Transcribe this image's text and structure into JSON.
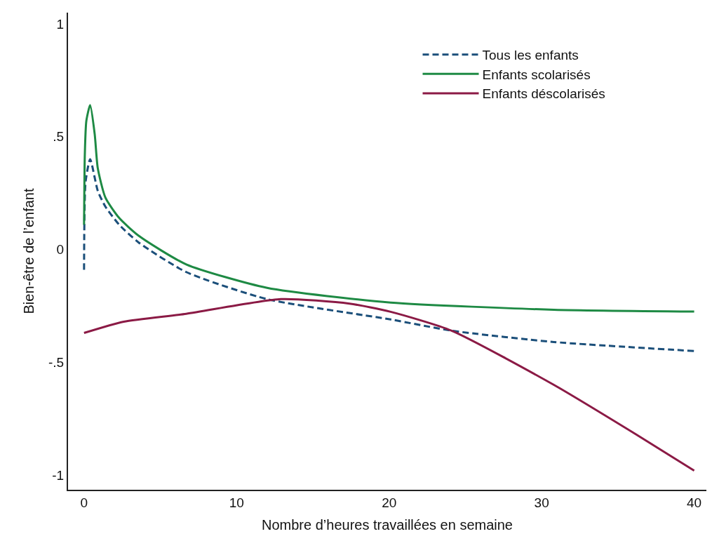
{
  "chart_data": {
    "type": "line",
    "xlabel": "Nombre d’heures travaillées en semaine",
    "ylabel": "Bien-être de l’enfant",
    "xlim": [
      -1.05,
      40.8
    ],
    "ylim": [
      -1.065,
      1.05
    ],
    "xticks": [
      0,
      10,
      20,
      30,
      40
    ],
    "yticks": [
      {
        "value": 1,
        "label": "1"
      },
      {
        "value": 0.5,
        "label": ".5"
      },
      {
        "value": 0,
        "label": "0"
      },
      {
        "value": -0.5,
        "label": "-.5"
      },
      {
        "value": -1,
        "label": "-1"
      }
    ],
    "legend": "top right",
    "marker": "none",
    "series": [
      {
        "name": "Tous les enfants",
        "color": "#1b4f7a",
        "line_style": "dashed",
        "x": [
          0,
          0.1,
          0.4,
          0.9,
          1.4,
          2.3,
          3.6,
          6.7,
          12.0,
          20.1,
          24.1,
          30.8,
          40
        ],
        "values": [
          -0.09,
          0.3,
          0.4,
          0.26,
          0.19,
          0.11,
          0.03,
          -0.1,
          -0.22,
          -0.31,
          -0.36,
          -0.41,
          -0.45
        ]
      },
      {
        "name": "Enfants scolarisés",
        "color": "#1e8a44",
        "line_style": "solid",
        "x": [
          0,
          0.05,
          0.15,
          0.4,
          0.7,
          0.9,
          1.4,
          2.3,
          3.6,
          6.7,
          12.0,
          20.1,
          30.8,
          40
        ],
        "values": [
          0.11,
          0.42,
          0.57,
          0.64,
          0.51,
          0.36,
          0.23,
          0.14,
          0.06,
          -0.066,
          -0.17,
          -0.235,
          -0.267,
          -0.275
        ]
      },
      {
        "name": "Enfants déscolarisés",
        "color": "#8b1a45",
        "line_style": "solid",
        "x": [
          0,
          2.6,
          6.7,
          12.9,
          17.4,
          20.1,
          24.1,
          30.8,
          36.2,
          40
        ],
        "values": [
          -0.37,
          -0.32,
          -0.285,
          -0.22,
          -0.24,
          -0.276,
          -0.36,
          -0.6,
          -0.82,
          -0.98
        ]
      }
    ]
  }
}
